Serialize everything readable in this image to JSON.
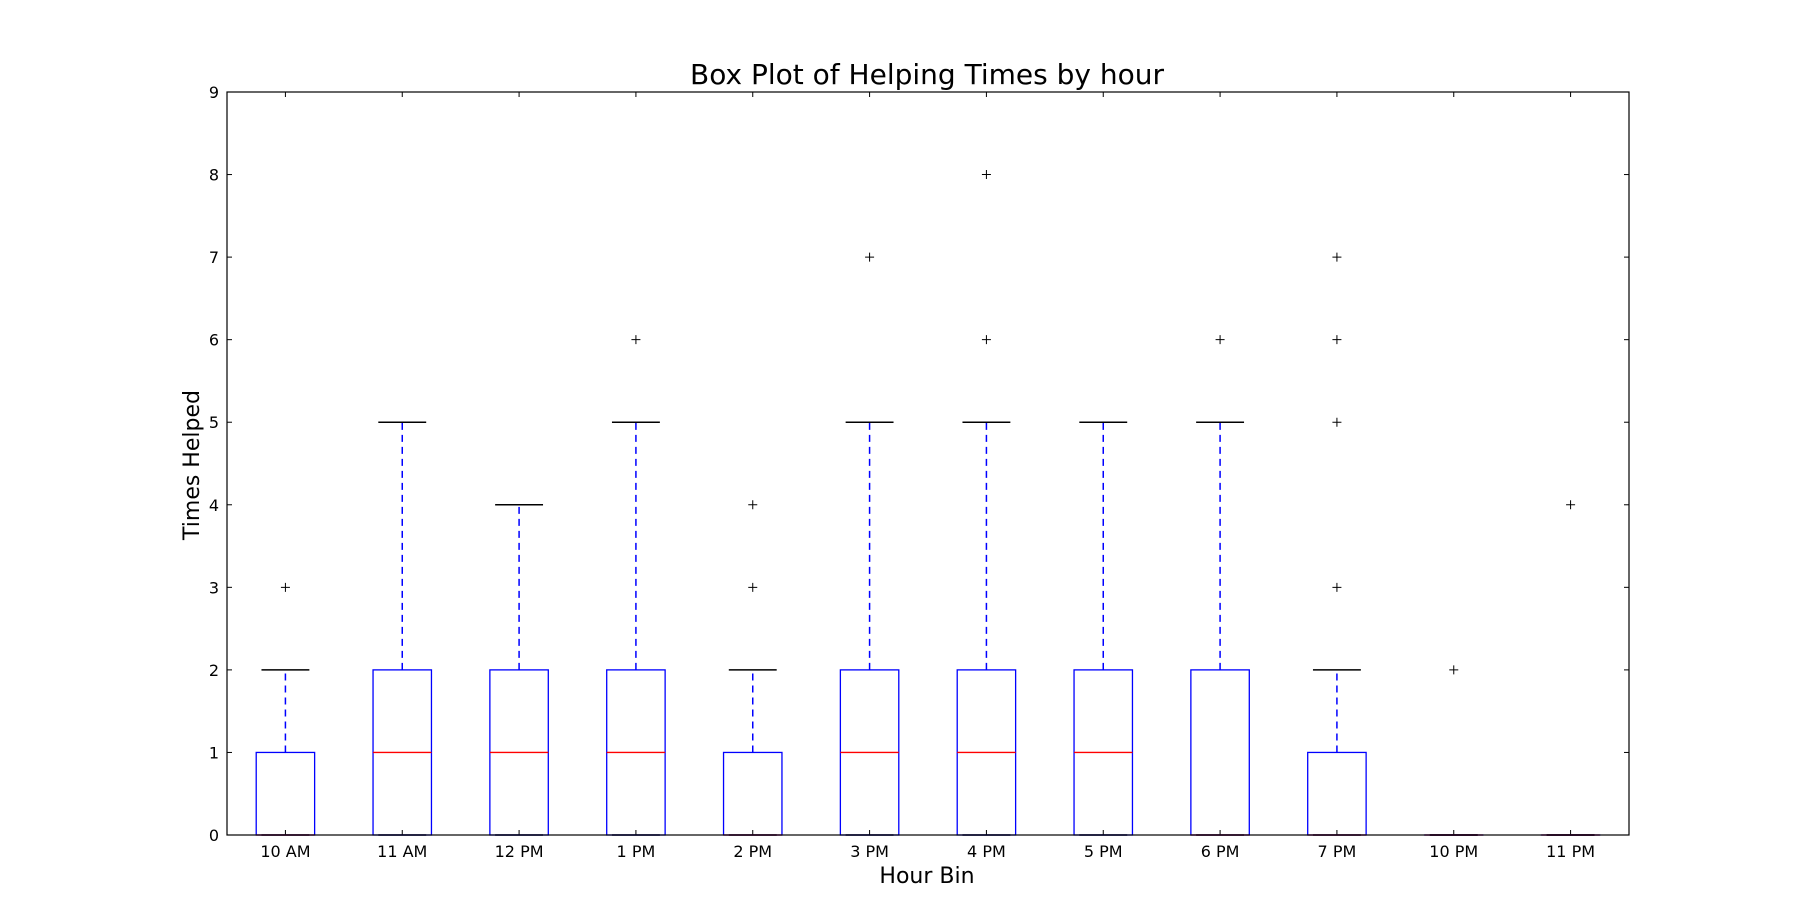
{
  "chart_data": {
    "type": "box",
    "title": "Box Plot of Helping Times by hour",
    "xlabel": "Hour Bin",
    "ylabel": "Times Helped",
    "ylim": [
      0,
      9
    ],
    "yticks": [
      "0",
      "1",
      "2",
      "3",
      "4",
      "5",
      "6",
      "7",
      "8",
      "9"
    ],
    "grid": false,
    "categories": [
      "10 AM",
      "11 AM",
      "12 PM",
      "1 PM",
      "2 PM",
      "3 PM",
      "4 PM",
      "5 PM",
      "6 PM",
      "7 PM",
      "10 PM",
      "11 PM"
    ],
    "boxes": [
      {
        "q1": 0,
        "median": 0,
        "q3": 1,
        "whisker_low": 0,
        "whisker_high": 2,
        "outliers": [
          3
        ]
      },
      {
        "q1": 0,
        "median": 1,
        "q3": 2,
        "whisker_low": 0,
        "whisker_high": 5,
        "outliers": []
      },
      {
        "q1": 0,
        "median": 1,
        "q3": 2,
        "whisker_low": 0,
        "whisker_high": 4,
        "outliers": []
      },
      {
        "q1": 0,
        "median": 1,
        "q3": 2,
        "whisker_low": 0,
        "whisker_high": 5,
        "outliers": [
          6
        ]
      },
      {
        "q1": 0,
        "median": 0,
        "q3": 1,
        "whisker_low": 0,
        "whisker_high": 2,
        "outliers": [
          3,
          4
        ]
      },
      {
        "q1": 0,
        "median": 1,
        "q3": 2,
        "whisker_low": 0,
        "whisker_high": 5,
        "outliers": [
          7
        ]
      },
      {
        "q1": 0,
        "median": 1,
        "q3": 2,
        "whisker_low": 0,
        "whisker_high": 5,
        "outliers": [
          6,
          8
        ]
      },
      {
        "q1": 0,
        "median": 1,
        "q3": 2,
        "whisker_low": 0,
        "whisker_high": 5,
        "outliers": []
      },
      {
        "q1": 0,
        "median": 0,
        "q3": 2,
        "whisker_low": 0,
        "whisker_high": 5,
        "outliers": [
          6
        ]
      },
      {
        "q1": 0,
        "median": 0,
        "q3": 1,
        "whisker_low": 0,
        "whisker_high": 2,
        "outliers": [
          3,
          5,
          6,
          7
        ]
      },
      {
        "q1": 0,
        "median": 0,
        "q3": 0,
        "whisker_low": 0,
        "whisker_high": 0,
        "outliers": [
          2
        ]
      },
      {
        "q1": 0,
        "median": 0,
        "q3": 0,
        "whisker_low": 0,
        "whisker_high": 0,
        "outliers": [
          4
        ]
      }
    ],
    "colors": {
      "box": "#0000ff",
      "whisker": "#0000ff",
      "cap": "#000000",
      "median": "#ff0000",
      "outlier": "#000000",
      "axes": "#000000"
    }
  }
}
